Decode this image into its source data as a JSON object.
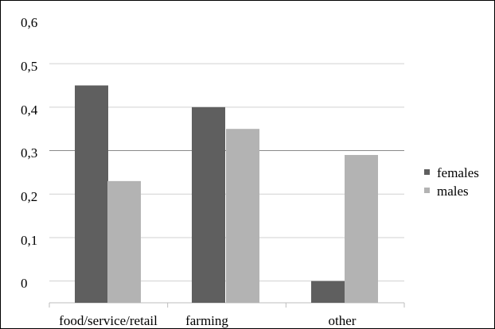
{
  "chart_data": {
    "type": "bar",
    "categories": [
      "food/service/retail",
      "farming",
      "other"
    ],
    "series": [
      {
        "name": "females",
        "values": [
          0.5,
          0.45,
          0.05
        ],
        "color": "#5f5f5f"
      },
      {
        "name": "males",
        "values": [
          0.28,
          0.4,
          0.34
        ],
        "color": "#b3b3b3"
      }
    ],
    "y_tick_labels": [
      "0",
      "0,1",
      "0,2",
      "0,3",
      "0,4",
      "0,5",
      "0,6"
    ],
    "ylim": [
      0,
      0.6
    ],
    "grid": true,
    "legend_position": "right",
    "title": "",
    "xlabel": "",
    "ylabel": ""
  }
}
